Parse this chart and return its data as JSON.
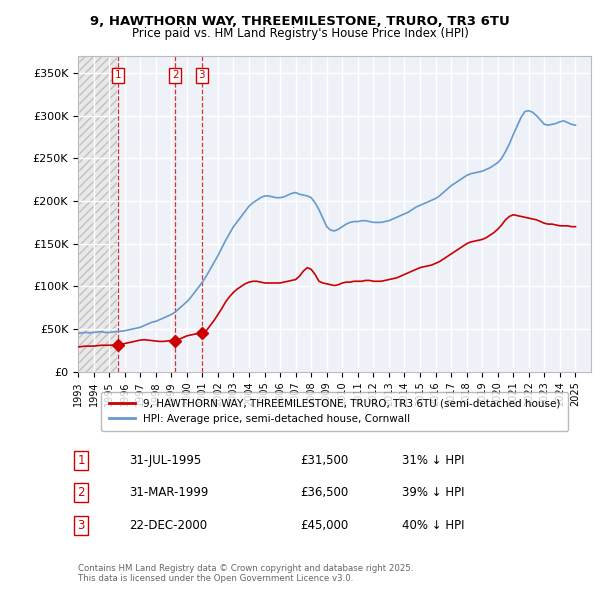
{
  "title_line1": "9, HAWTHORN WAY, THREEMILESTONE, TRURO, TR3 6TU",
  "title_line2": "Price paid vs. HM Land Registry's House Price Index (HPI)",
  "ytick_labels": [
    "£0",
    "£50K",
    "£100K",
    "£150K",
    "£200K",
    "£250K",
    "£300K",
    "£350K"
  ],
  "yticks": [
    0,
    50000,
    100000,
    150000,
    200000,
    250000,
    300000,
    350000
  ],
  "price_paid_color": "#cc0000",
  "hpi_color": "#6699cc",
  "legend_label_price": "9, HAWTHORN WAY, THREEMILESTONE, TRURO, TR3 6TU (semi-detached house)",
  "legend_label_hpi": "HPI: Average price, semi-detached house, Cornwall",
  "transactions": [
    {
      "num": 1,
      "date_label": "31-JUL-1995",
      "price": 31500,
      "pct": "31%",
      "x_year": 1995.58
    },
    {
      "num": 2,
      "date_label": "31-MAR-1999",
      "price": 36500,
      "pct": "39%",
      "x_year": 1999.25
    },
    {
      "num": 3,
      "date_label": "22-DEC-2000",
      "price": 45000,
      "pct": "40%",
      "x_year": 2000.97
    }
  ],
  "footer_line1": "Contains HM Land Registry data © Crown copyright and database right 2025.",
  "footer_line2": "This data is licensed under the Open Government Licence v3.0.",
  "xmin": 1993,
  "xmax": 2026,
  "ymin": 0,
  "ymax": 370000,
  "hpi_years": [
    1993.0,
    1993.25,
    1993.5,
    1993.75,
    1994.0,
    1994.25,
    1994.5,
    1994.75,
    1995.0,
    1995.25,
    1995.5,
    1995.75,
    1996.0,
    1996.25,
    1996.5,
    1996.75,
    1997.0,
    1997.25,
    1997.5,
    1997.75,
    1998.0,
    1998.25,
    1998.5,
    1998.75,
    1999.0,
    1999.25,
    1999.5,
    1999.75,
    2000.0,
    2000.25,
    2000.5,
    2000.75,
    2001.0,
    2001.25,
    2001.5,
    2001.75,
    2002.0,
    2002.25,
    2002.5,
    2002.75,
    2003.0,
    2003.25,
    2003.5,
    2003.75,
    2004.0,
    2004.25,
    2004.5,
    2004.75,
    2005.0,
    2005.25,
    2005.5,
    2005.75,
    2006.0,
    2006.25,
    2006.5,
    2006.75,
    2007.0,
    2007.25,
    2007.5,
    2007.75,
    2008.0,
    2008.25,
    2008.5,
    2008.75,
    2009.0,
    2009.25,
    2009.5,
    2009.75,
    2010.0,
    2010.25,
    2010.5,
    2010.75,
    2011.0,
    2011.25,
    2011.5,
    2011.75,
    2012.0,
    2012.25,
    2012.5,
    2012.75,
    2013.0,
    2013.25,
    2013.5,
    2013.75,
    2014.0,
    2014.25,
    2014.5,
    2014.75,
    2015.0,
    2015.25,
    2015.5,
    2015.75,
    2016.0,
    2016.25,
    2016.5,
    2016.75,
    2017.0,
    2017.25,
    2017.5,
    2017.75,
    2018.0,
    2018.25,
    2018.5,
    2018.75,
    2019.0,
    2019.25,
    2019.5,
    2019.75,
    2020.0,
    2020.25,
    2020.5,
    2020.75,
    2021.0,
    2021.25,
    2021.5,
    2021.75,
    2022.0,
    2022.25,
    2022.5,
    2022.75,
    2023.0,
    2023.25,
    2023.5,
    2023.75,
    2024.0,
    2024.25,
    2024.5,
    2024.75,
    2025.0
  ],
  "hpi_values": [
    45000,
    45500,
    46000,
    45500,
    46000,
    46500,
    47000,
    46000,
    46000,
    46500,
    47000,
    47500,
    48000,
    49000,
    50000,
    51000,
    52000,
    54000,
    56000,
    58000,
    59000,
    61000,
    63000,
    65000,
    67000,
    70000,
    74000,
    78000,
    82000,
    87000,
    93000,
    99000,
    105000,
    112000,
    120000,
    128000,
    136000,
    145000,
    154000,
    162000,
    170000,
    176000,
    182000,
    188000,
    194000,
    198000,
    201000,
    204000,
    206000,
    206000,
    205000,
    204000,
    204000,
    205000,
    207000,
    209000,
    210000,
    208000,
    207000,
    206000,
    204000,
    198000,
    190000,
    180000,
    170000,
    166000,
    165000,
    167000,
    170000,
    173000,
    175000,
    176000,
    176000,
    177000,
    177000,
    176000,
    175000,
    175000,
    175000,
    176000,
    177000,
    179000,
    181000,
    183000,
    185000,
    187000,
    190000,
    193000,
    195000,
    197000,
    199000,
    201000,
    203000,
    206000,
    210000,
    214000,
    218000,
    221000,
    224000,
    227000,
    230000,
    232000,
    233000,
    234000,
    235000,
    237000,
    239000,
    242000,
    245000,
    250000,
    258000,
    267000,
    278000,
    288000,
    298000,
    305000,
    306000,
    304000,
    300000,
    295000,
    290000,
    289000,
    290000,
    291000,
    293000,
    294000,
    292000,
    290000,
    289000
  ],
  "price_years": [
    1993.0,
    1993.25,
    1993.5,
    1993.75,
    1994.0,
    1994.25,
    1994.5,
    1994.75,
    1995.0,
    1995.25,
    1995.58,
    1995.75,
    1996.0,
    1996.25,
    1996.5,
    1996.75,
    1997.0,
    1997.25,
    1997.5,
    1997.75,
    1998.0,
    1998.25,
    1998.5,
    1998.75,
    1999.0,
    1999.25,
    1999.5,
    1999.75,
    2000.0,
    2000.25,
    2000.5,
    2000.75,
    2000.97,
    2001.25,
    2001.5,
    2001.75,
    2002.0,
    2002.25,
    2002.5,
    2002.75,
    2003.0,
    2003.25,
    2003.5,
    2003.75,
    2004.0,
    2004.25,
    2004.5,
    2004.75,
    2005.0,
    2005.25,
    2005.5,
    2005.75,
    2006.0,
    2006.25,
    2006.5,
    2006.75,
    2007.0,
    2007.25,
    2007.5,
    2007.75,
    2008.0,
    2008.25,
    2008.5,
    2008.75,
    2009.0,
    2009.25,
    2009.5,
    2009.75,
    2010.0,
    2010.25,
    2010.5,
    2010.75,
    2011.0,
    2011.25,
    2011.5,
    2011.75,
    2012.0,
    2012.25,
    2012.5,
    2012.75,
    2013.0,
    2013.25,
    2013.5,
    2013.75,
    2014.0,
    2014.25,
    2014.5,
    2014.75,
    2015.0,
    2015.25,
    2015.5,
    2015.75,
    2016.0,
    2016.25,
    2016.5,
    2016.75,
    2017.0,
    2017.25,
    2017.5,
    2017.75,
    2018.0,
    2018.25,
    2018.5,
    2018.75,
    2019.0,
    2019.25,
    2019.5,
    2019.75,
    2020.0,
    2020.25,
    2020.5,
    2020.75,
    2021.0,
    2021.25,
    2021.5,
    2021.75,
    2022.0,
    2022.25,
    2022.5,
    2022.75,
    2023.0,
    2023.25,
    2023.5,
    2023.75,
    2024.0,
    2024.25,
    2024.5,
    2024.75,
    2025.0
  ],
  "price_values": [
    29000,
    29500,
    30000,
    30000,
    30000,
    30500,
    31000,
    31000,
    31000,
    31200,
    31500,
    32000,
    33000,
    34000,
    35000,
    36000,
    37000,
    37500,
    37000,
    36500,
    36000,
    35500,
    35500,
    36000,
    36500,
    36500,
    38000,
    40000,
    42000,
    43000,
    44000,
    45000,
    45000,
    48000,
    54000,
    60000,
    67000,
    74000,
    82000,
    88000,
    93000,
    97000,
    100000,
    103000,
    105000,
    106000,
    106000,
    105000,
    104000,
    104000,
    104000,
    104000,
    104000,
    105000,
    106000,
    107000,
    108000,
    112000,
    118000,
    122000,
    120000,
    114000,
    106000,
    104000,
    103000,
    102000,
    101000,
    102000,
    104000,
    105000,
    105000,
    106000,
    106000,
    106000,
    107000,
    107000,
    106000,
    106000,
    106000,
    107000,
    108000,
    109000,
    110000,
    112000,
    114000,
    116000,
    118000,
    120000,
    122000,
    123000,
    124000,
    125000,
    127000,
    129000,
    132000,
    135000,
    138000,
    141000,
    144000,
    147000,
    150000,
    152000,
    153000,
    154000,
    155000,
    157000,
    160000,
    163000,
    167000,
    172000,
    178000,
    182000,
    184000,
    183000,
    182000,
    181000,
    180000,
    179000,
    178000,
    176000,
    174000,
    173000,
    173000,
    172000,
    171000,
    171000,
    171000,
    170000,
    170000
  ]
}
